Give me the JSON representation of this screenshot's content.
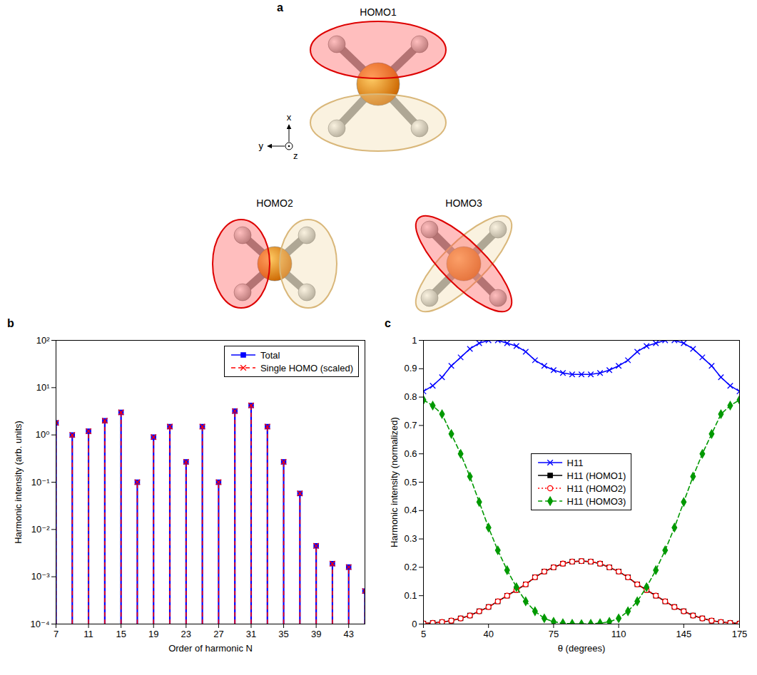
{
  "diagram": {
    "panel_label": "a",
    "orbitals": [
      {
        "label": "HOMO1"
      },
      {
        "label": "HOMO2"
      },
      {
        "label": "HOMO3"
      }
    ],
    "axes": [
      "x",
      "y",
      "z"
    ]
  },
  "chart_data": [
    {
      "panel_label": "b",
      "type": "stem",
      "x_label": "Order of harmonic N",
      "y_label": "Harmonic intensity (arb. units)",
      "x": [
        7,
        9,
        11,
        13,
        15,
        17,
        19,
        21,
        23,
        25,
        27,
        29,
        31,
        33,
        35,
        37,
        39,
        41,
        43,
        45
      ],
      "series": [
        {
          "name": "Total",
          "color": "#0000ff",
          "marker": "square",
          "line_style": "solid",
          "values": [
            1.8,
            1.0,
            1.2,
            2.0,
            3.0,
            0.1,
            0.9,
            1.5,
            0.27,
            1.5,
            0.1,
            3.2,
            4.2,
            1.5,
            0.27,
            0.058,
            0.0045,
            0.0019,
            0.0016,
            0.0005
          ]
        },
        {
          "name": "Single HOMO (scaled)",
          "color": "#ff0000",
          "marker": "x",
          "line_style": "dashed",
          "values": [
            1.8,
            1.0,
            1.2,
            2.0,
            3.0,
            0.1,
            0.9,
            1.5,
            0.27,
            1.5,
            0.1,
            3.2,
            4.2,
            1.5,
            0.27,
            0.058,
            0.0045,
            0.0019,
            0.0016,
            0.0005
          ]
        }
      ],
      "xlim": [
        7,
        45
      ],
      "xticks": [
        7,
        11,
        15,
        19,
        23,
        27,
        31,
        35,
        39,
        43
      ],
      "ylim": [
        0.0001,
        100
      ],
      "yticks": [
        {
          "value": 0.0001,
          "label": "10⁻⁴"
        },
        {
          "value": 0.001,
          "label": "10⁻³"
        },
        {
          "value": 0.01,
          "label": "10⁻²"
        },
        {
          "value": 0.1,
          "label": "10⁻¹"
        },
        {
          "value": 1,
          "label": "10⁰"
        },
        {
          "value": 10,
          "label": "10¹"
        },
        {
          "value": 100,
          "label": "10²"
        }
      ],
      "log": "y",
      "legend": "upper right"
    },
    {
      "panel_label": "c",
      "type": "line",
      "x_label": "θ (degrees)",
      "y_label": "Harmonic intensity (normalized)",
      "x": [
        5,
        10,
        15,
        20,
        25,
        30,
        35,
        40,
        45,
        50,
        55,
        60,
        65,
        70,
        75,
        80,
        85,
        90,
        95,
        100,
        105,
        110,
        115,
        120,
        125,
        130,
        135,
        140,
        145,
        150,
        155,
        160,
        165,
        170,
        175
      ],
      "series": [
        {
          "name": "H11",
          "color": "#0000ff",
          "marker": "x",
          "line_style": "solid",
          "values": [
            0.82,
            0.84,
            0.87,
            0.91,
            0.94,
            0.97,
            0.99,
            1.0,
            1.0,
            0.99,
            0.98,
            0.96,
            0.93,
            0.91,
            0.895,
            0.885,
            0.88,
            0.88,
            0.88,
            0.885,
            0.895,
            0.91,
            0.93,
            0.96,
            0.98,
            0.99,
            1.0,
            1.0,
            0.99,
            0.97,
            0.94,
            0.91,
            0.87,
            0.84,
            0.82
          ]
        },
        {
          "name": "H11 (HOMO1)",
          "color": "#000000",
          "marker": "square",
          "line_style": "solid",
          "values": [
            0.002,
            0.004,
            0.007,
            0.012,
            0.02,
            0.03,
            0.045,
            0.06,
            0.08,
            0.1,
            0.12,
            0.14,
            0.165,
            0.185,
            0.2,
            0.213,
            0.22,
            0.222,
            0.22,
            0.213,
            0.2,
            0.185,
            0.165,
            0.14,
            0.12,
            0.1,
            0.08,
            0.06,
            0.045,
            0.03,
            0.02,
            0.012,
            0.007,
            0.004,
            0.002
          ]
        },
        {
          "name": "H11 (HOMO2)",
          "color": "#ff0000",
          "marker": "circle",
          "line_style": "dotted",
          "values": [
            0.002,
            0.004,
            0.007,
            0.012,
            0.02,
            0.03,
            0.045,
            0.06,
            0.08,
            0.1,
            0.12,
            0.14,
            0.165,
            0.185,
            0.2,
            0.213,
            0.22,
            0.222,
            0.22,
            0.213,
            0.2,
            0.185,
            0.165,
            0.14,
            0.12,
            0.1,
            0.08,
            0.06,
            0.045,
            0.03,
            0.02,
            0.012,
            0.007,
            0.004,
            0.002
          ]
        },
        {
          "name": "H11 (HOMO3)",
          "color": "#009900",
          "marker": "diamond",
          "line_style": "dashed",
          "values": [
            0.79,
            0.77,
            0.74,
            0.67,
            0.6,
            0.52,
            0.43,
            0.34,
            0.26,
            0.19,
            0.13,
            0.08,
            0.045,
            0.02,
            0.008,
            0.003,
            0.001,
            0,
            0.001,
            0.003,
            0.008,
            0.02,
            0.045,
            0.08,
            0.13,
            0.19,
            0.26,
            0.34,
            0.43,
            0.52,
            0.6,
            0.67,
            0.74,
            0.77,
            0.79
          ]
        }
      ],
      "xlim": [
        5,
        175
      ],
      "xticks": [
        5,
        40,
        75,
        110,
        145,
        175
      ],
      "ylim": [
        0,
        1
      ],
      "yticks": [
        0,
        0.1,
        0.2,
        0.3,
        0.4,
        0.5,
        0.6,
        0.7,
        0.8,
        0.9,
        1
      ],
      "legend": "center"
    }
  ]
}
